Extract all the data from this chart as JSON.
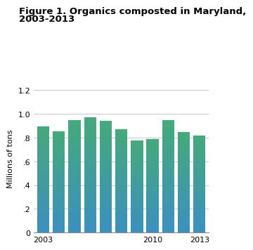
{
  "title_line1": "Figure 1. Organics composted in Maryland,",
  "title_line2": "2003-2013",
  "years": [
    2003,
    2004,
    2005,
    2006,
    2007,
    2008,
    2009,
    2010,
    2011,
    2012,
    2013
  ],
  "values": [
    0.895,
    0.855,
    0.945,
    0.97,
    0.94,
    0.87,
    0.775,
    0.79,
    0.945,
    0.845,
    0.82
  ],
  "ylabel": "Millions of tons",
  "yticks": [
    0,
    0.2,
    0.4,
    0.6,
    0.8,
    1.0,
    1.2
  ],
  "ytick_labels": [
    "0",
    ".2",
    ".4",
    ".6",
    ".8",
    "1.0",
    "1.2"
  ],
  "xtick_years": [
    2003,
    2010,
    2013
  ],
  "ylim": [
    0,
    1.25
  ],
  "bar_bottom_color": "#3a90c0",
  "bar_top_color": "#44aa7a",
  "background_color": "#ffffff",
  "title_fontsize": 9.5,
  "axis_fontsize": 8,
  "bar_width": 0.78
}
